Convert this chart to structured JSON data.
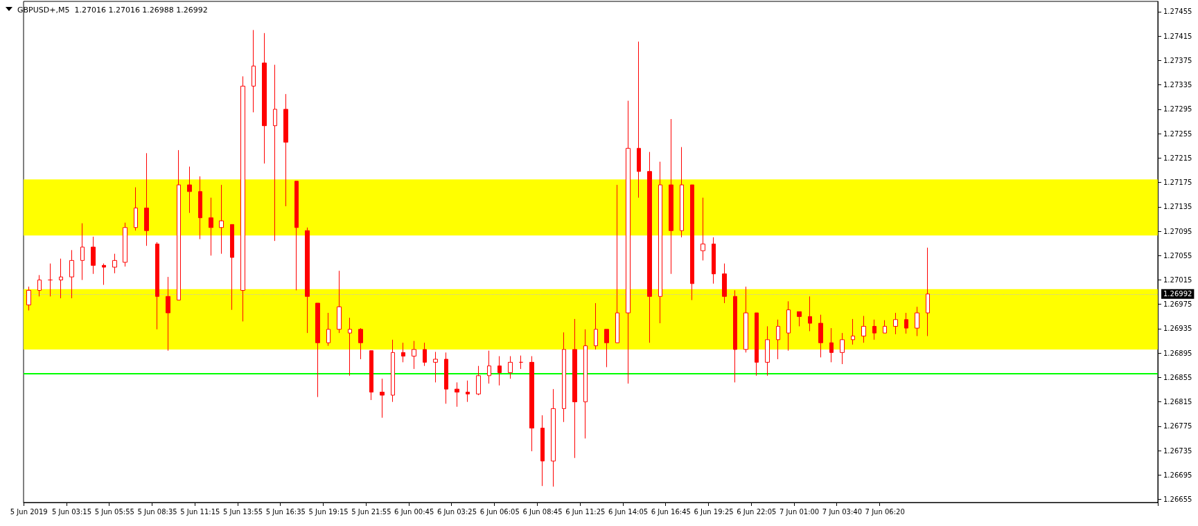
{
  "chart_data": {
    "type": "candlestick",
    "title": "GBPUSD+,M5  1.27016 1.27016 1.26988 1.26992",
    "color": "#ff0000",
    "categories": [
      "5 Jun 2019",
      null,
      null,
      null,
      "5 Jun 03:15",
      null,
      null,
      null,
      "5 Jun 05:55",
      null,
      null,
      null,
      "5 Jun 08:35",
      null,
      null,
      null,
      "5 Jun 11:15",
      null,
      null,
      null,
      "5 Jun 13:55",
      null,
      null,
      null,
      "5 Jun 16:35",
      null,
      null,
      null,
      "5 Jun 19:15",
      null,
      null,
      null,
      "5 Jun 21:55",
      null,
      null,
      null,
      "6 Jun 00:45",
      null,
      null,
      null,
      "6 Jun 03:25",
      null,
      null,
      null,
      "6 Jun 06:05",
      null,
      null,
      null,
      "6 Jun 08:45",
      null,
      null,
      null,
      "6 Jun 11:25",
      null,
      null,
      null,
      "6 Jun 14:05",
      null,
      null,
      null,
      "6 Jun 16:45",
      null,
      null,
      null,
      "6 Jun 19:25",
      null,
      null,
      null,
      "6 Jun 22:05",
      null,
      null,
      null,
      "7 Jun 01:00",
      null,
      null,
      null,
      "7 Jun 03:40",
      null,
      null,
      null,
      "7 Jun 06:20",
      null,
      null,
      null,
      null,
      null,
      null,
      null,
      null,
      null,
      null,
      null,
      null,
      null,
      null,
      null,
      null,
      null,
      null,
      null,
      null,
      null,
      null,
      null,
      null,
      null
    ],
    "ohlc": [
      [
        1.26974,
        1.27004,
        1.26965,
        1.26998
      ],
      [
        1.26998,
        1.27023,
        1.26988,
        1.27015
      ],
      [
        1.27015,
        1.27042,
        1.26988,
        1.27015
      ],
      [
        1.27015,
        1.2705,
        1.26985,
        1.2702
      ],
      [
        1.2702,
        1.27064,
        1.26985,
        1.27047
      ],
      [
        1.27047,
        1.27108,
        1.27015,
        1.27069
      ],
      [
        1.27069,
        1.27086,
        1.27025,
        1.27039
      ],
      [
        1.27039,
        1.27042,
        1.27007,
        1.27036
      ],
      [
        1.27036,
        1.27058,
        1.27026,
        1.27047
      ],
      [
        1.27044,
        1.27109,
        1.27037,
        1.27101
      ],
      [
        1.27101,
        1.27167,
        1.27096,
        1.27133
      ],
      [
        1.27133,
        1.27223,
        1.27071,
        1.27096
      ],
      [
        1.27074,
        1.27077,
        1.26934,
        1.26988
      ],
      [
        1.26988,
        1.2702,
        1.26899,
        1.26961
      ],
      [
        1.26982,
        1.27228,
        1.26982,
        1.27171
      ],
      [
        1.27171,
        1.27201,
        1.27125,
        1.2716
      ],
      [
        1.2716,
        1.27185,
        1.27082,
        1.27117
      ],
      [
        1.27117,
        1.2715,
        1.27055,
        1.27101
      ],
      [
        1.27101,
        1.27171,
        1.27058,
        1.27112
      ],
      [
        1.27106,
        1.27106,
        1.26966,
        1.27052
      ],
      [
        1.26998,
        1.27349,
        1.26947,
        1.27333
      ],
      [
        1.27333,
        1.27425,
        1.2729,
        1.27366
      ],
      [
        1.27371,
        1.2742,
        1.27206,
        1.27268
      ],
      [
        1.27268,
        1.27368,
        1.27079,
        1.27295
      ],
      [
        1.27295,
        1.2732,
        1.27136,
        1.27241
      ],
      [
        1.27177,
        1.27177,
        1.26998,
        1.27101
      ],
      [
        1.27096,
        1.27101,
        1.26928,
        1.26988
      ],
      [
        1.26977,
        1.26977,
        1.26823,
        1.26912
      ],
      [
        1.26912,
        1.26961,
        1.26907,
        1.26934
      ],
      [
        1.26934,
        1.2703,
        1.26928,
        1.26971
      ],
      [
        1.26928,
        1.26953,
        1.26858,
        1.26934
      ],
      [
        1.26934,
        1.26936,
        1.26885,
        1.26912
      ],
      [
        1.26899,
        1.26899,
        1.26818,
        1.26831
      ],
      [
        1.26831,
        1.26853,
        1.26789,
        1.26826
      ],
      [
        1.26826,
        1.26917,
        1.26815,
        1.26896
      ],
      [
        1.26896,
        1.26912,
        1.2688,
        1.2689
      ],
      [
        1.2689,
        1.26915,
        1.26869,
        1.26901
      ],
      [
        1.26901,
        1.26912,
        1.26874,
        1.2688
      ],
      [
        1.2688,
        1.26897,
        1.26847,
        1.26885
      ],
      [
        1.26885,
        1.26896,
        1.26812,
        1.26836
      ],
      [
        1.26836,
        1.26847,
        1.26807,
        1.26831
      ],
      [
        1.26831,
        1.2685,
        1.26815,
        1.26828
      ],
      [
        1.26828,
        1.26874,
        1.26826,
        1.26858
      ],
      [
        1.26858,
        1.26899,
        1.26845,
        1.26874
      ],
      [
        1.26874,
        1.2689,
        1.26842,
        1.26863
      ],
      [
        1.26863,
        1.2689,
        1.26853,
        1.2688
      ],
      [
        1.2688,
        1.26891,
        1.26869,
        1.2688
      ],
      [
        1.2688,
        1.2689,
        1.26734,
        1.26772
      ],
      [
        1.26772,
        1.26793,
        1.26677,
        1.26718
      ],
      [
        1.26718,
        1.26836,
        1.26676,
        1.26804
      ],
      [
        1.26804,
        1.26929,
        1.26782,
        1.26901
      ],
      [
        1.26901,
        1.26951,
        1.26723,
        1.26815
      ],
      [
        1.26815,
        1.26934,
        1.26755,
        1.26907
      ],
      [
        1.26907,
        1.26977,
        1.26901,
        1.26934
      ],
      [
        1.26934,
        1.26934,
        1.26872,
        1.26912
      ],
      [
        1.26912,
        1.27171,
        1.26912,
        1.26961
      ],
      [
        1.26961,
        1.27309,
        1.26845,
        1.27231
      ],
      [
        1.27231,
        1.27406,
        1.2715,
        1.27193
      ],
      [
        1.27193,
        1.27225,
        1.26912,
        1.26988
      ],
      [
        1.26988,
        1.27209,
        1.26944,
        1.27171
      ],
      [
        1.27171,
        1.27279,
        1.27025,
        1.27096
      ],
      [
        1.27096,
        1.27233,
        1.27085,
        1.27171
      ],
      [
        1.27171,
        1.27171,
        1.26982,
        1.27009
      ],
      [
        1.27063,
        1.2715,
        1.27047,
        1.27074
      ],
      [
        1.27074,
        1.27085,
        1.27009,
        1.27025
      ],
      [
        1.27025,
        1.27042,
        1.26977,
        1.26988
      ],
      [
        1.26988,
        1.26998,
        1.26847,
        1.26901
      ],
      [
        1.26901,
        1.27004,
        1.26896,
        1.26961
      ],
      [
        1.26961,
        1.26961,
        1.26858,
        1.2688
      ],
      [
        1.2688,
        1.26939,
        1.26858,
        1.26917
      ],
      [
        1.26917,
        1.2695,
        1.26885,
        1.26939
      ],
      [
        1.26928,
        1.2698,
        1.26899,
        1.26966
      ],
      [
        1.26963,
        1.26963,
        1.26939,
        1.26955
      ],
      [
        1.26955,
        1.26988,
        1.26931,
        1.26944
      ],
      [
        1.26944,
        1.26958,
        1.26888,
        1.26912
      ],
      [
        1.26912,
        1.26936,
        1.2688,
        1.26896
      ],
      [
        1.26896,
        1.26928,
        1.26877,
        1.26917
      ],
      [
        1.26917,
        1.26951,
        1.26909,
        1.26923
      ],
      [
        1.26923,
        1.26956,
        1.26912,
        1.26939
      ],
      [
        1.26939,
        1.2695,
        1.26917,
        1.26928
      ],
      [
        1.26928,
        1.26949,
        1.26928,
        1.26939
      ],
      [
        1.26939,
        1.26961,
        1.26926,
        1.2695
      ],
      [
        1.2695,
        1.26961,
        1.26927,
        1.26936
      ],
      [
        1.26936,
        1.26971,
        1.26923,
        1.26961
      ],
      [
        1.26961,
        1.27068,
        1.26923,
        1.26992
      ],
      null,
      null,
      null,
      null,
      null,
      null,
      null,
      null,
      null,
      null,
      null,
      null,
      null,
      null,
      null,
      null,
      null,
      null,
      null,
      null,
      null
    ],
    "ylim": [
      1.2665,
      1.27472
    ],
    "yticks": [
      1.26655,
      1.26695,
      1.26735,
      1.26775,
      1.26815,
      1.26855,
      1.26895,
      1.26935,
      1.26975,
      1.27015,
      1.27055,
      1.27095,
      1.27135,
      1.27175,
      1.27215,
      1.27255,
      1.27295,
      1.27335,
      1.27375,
      1.27415,
      1.27455
    ],
    "bands": [
      {
        "axis": "y",
        "from": 1.27088,
        "to": 1.2718,
        "color": "#ffff00"
      },
      {
        "axis": "y",
        "from": 1.2694,
        "to": 1.27,
        "color": "#ffff00"
      },
      {
        "axis": "y",
        "from": 1.26901,
        "to": 1.2695,
        "color": "#ffff00"
      }
    ],
    "ref_lines": [
      {
        "axis": "y",
        "value": 1.26861,
        "color": "#00ff00",
        "line_style": "solid"
      },
      {
        "axis": "y",
        "value": 1.26992,
        "label": "1.26992",
        "color": "#c0c0c0",
        "line_style": "dotted"
      }
    ]
  }
}
